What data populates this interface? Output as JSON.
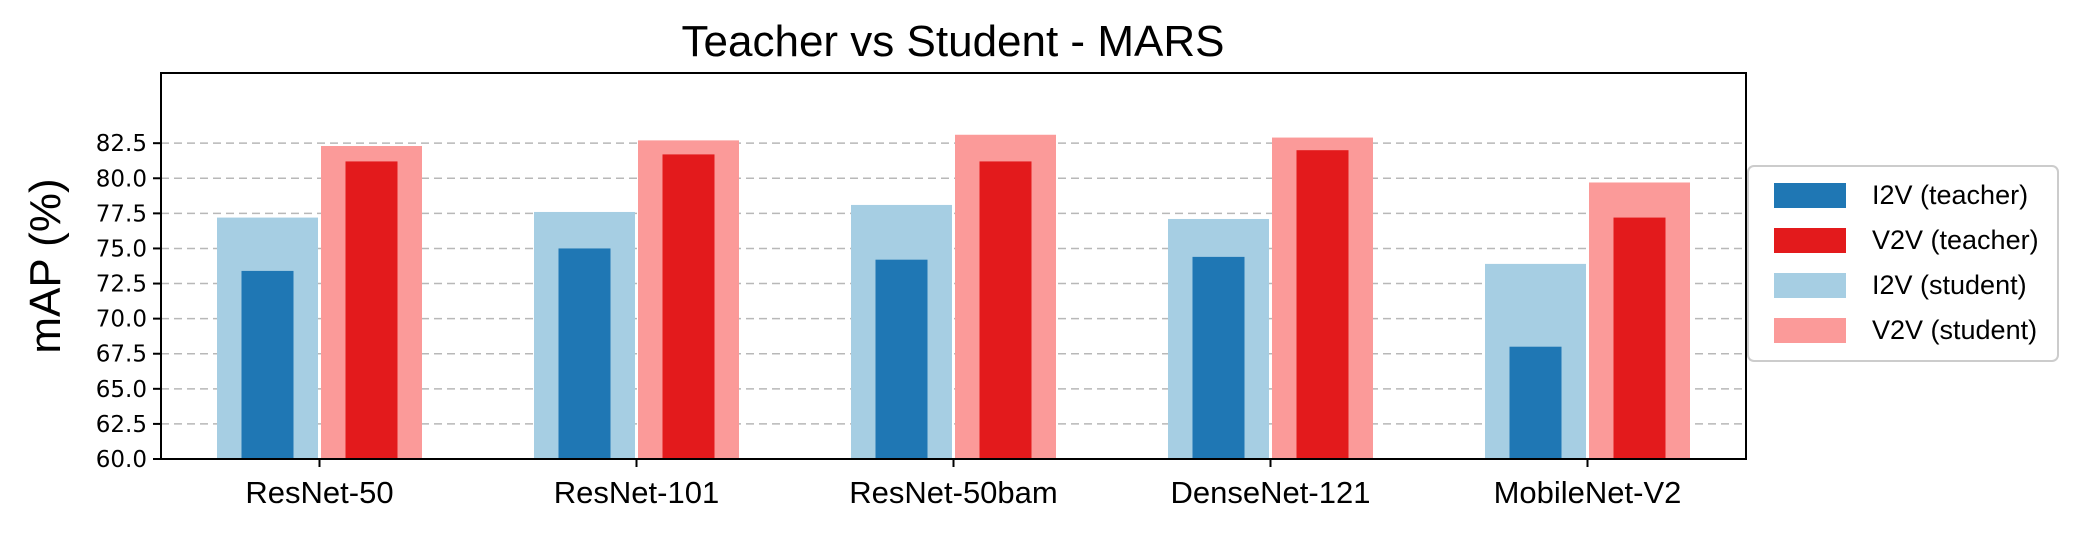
{
  "chart_data": {
    "type": "bar",
    "title": "Teacher vs Student - MARS",
    "xlabel": "",
    "ylabel": "mAP (%)",
    "ylim": [
      60.0,
      87.5
    ],
    "yticks": [
      "60.0",
      "62.5",
      "65.0",
      "67.5",
      "70.0",
      "72.5",
      "75.0",
      "77.5",
      "80.0",
      "82.5"
    ],
    "grid": true,
    "legend_position": "right",
    "categories": [
      "ResNet-50",
      "ResNet-101",
      "ResNet-50bam",
      "DenseNet-121",
      "MobileNet-V2"
    ],
    "series": [
      {
        "name": "I2V (teacher)",
        "color": "#1f77b4",
        "values": [
          73.4,
          75.0,
          74.2,
          74.4,
          68.0
        ]
      },
      {
        "name": "V2V (teacher)",
        "color": "#e31a1c",
        "values": [
          81.2,
          81.7,
          81.2,
          82.0,
          77.2
        ]
      },
      {
        "name": "I2V (student)",
        "color": "#a6cee3",
        "values": [
          77.2,
          77.6,
          78.1,
          77.1,
          73.9
        ]
      },
      {
        "name": "V2V (student)",
        "color": "#fb9a99",
        "values": [
          82.3,
          82.7,
          83.1,
          82.9,
          79.7
        ]
      }
    ]
  }
}
